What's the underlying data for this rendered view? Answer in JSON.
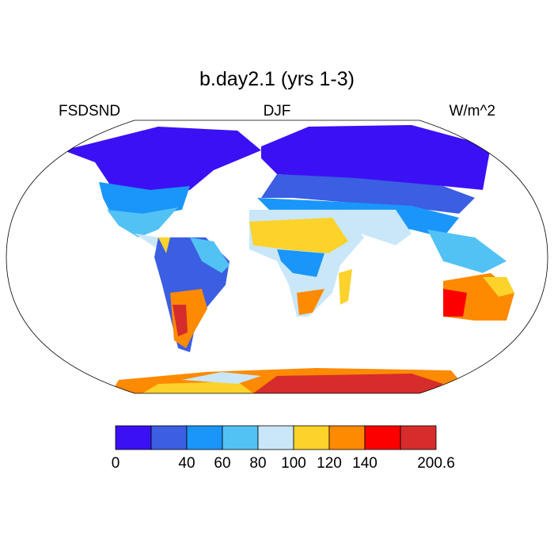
{
  "map": {
    "title": "b.day2.1 (yrs 1-3)",
    "left_label": "FSDSND",
    "center_label": "DJF",
    "right_label": "W/m^2",
    "colorbar": {
      "colors": [
        "#3c10f5",
        "#3b5ee2",
        "#1a96fa",
        "#52c2f5",
        "#c9e7f8",
        "#fdd22a",
        "#fd8a00",
        "#fc0000",
        "#d62c2c"
      ],
      "boundaries": [
        0,
        null,
        40,
        60,
        80,
        100,
        120,
        140,
        null,
        200.6
      ]
    }
  }
}
